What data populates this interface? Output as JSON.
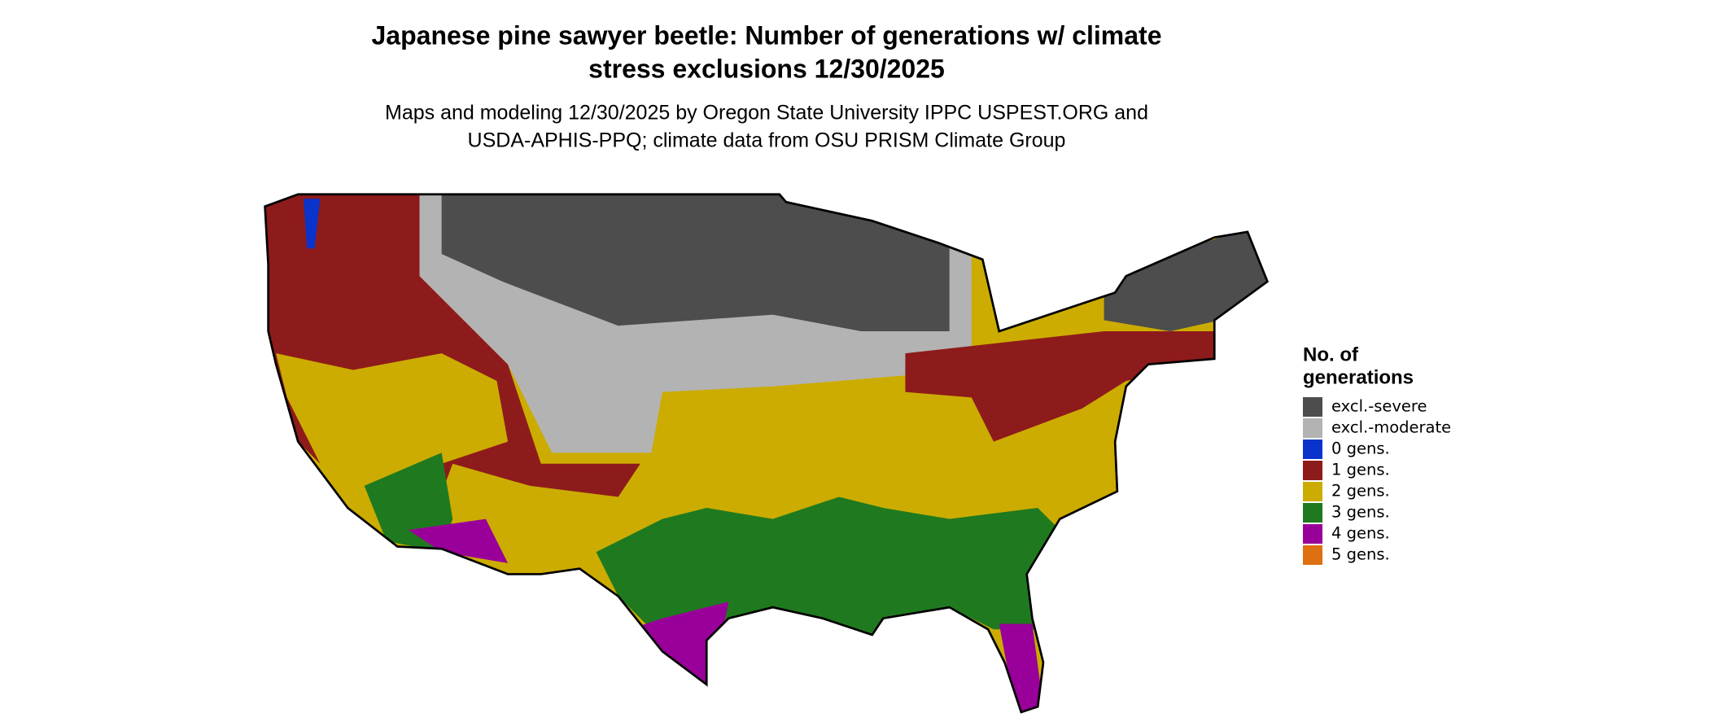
{
  "header": {
    "title_lines": [
      "Japanese pine sawyer beetle: Number of generations w/ climate",
      "stress exclusions 12/30/2025"
    ],
    "subtitle_lines": [
      "Maps and modeling 12/30/2025 by Oregon State University IPPC USPEST.ORG and",
      "USDA-APHIS-PPQ; climate data from OSU PRISM Climate Group"
    ]
  },
  "legend": {
    "title_lines": [
      "No. of",
      "generations"
    ],
    "items": [
      {
        "label": "excl.-severe",
        "color": "#4d4d4d"
      },
      {
        "label": "excl.-moderate",
        "color": "#b3b3b3"
      },
      {
        "label": "0 gens.",
        "color": "#0a33cc"
      },
      {
        "label": "1 gens.",
        "color": "#8e1b1b"
      },
      {
        "label": "2 gens.",
        "color": "#ccac00"
      },
      {
        "label": "3 gens.",
        "color": "#1f7a1f"
      },
      {
        "label": "4 gens.",
        "color": "#990099"
      },
      {
        "label": "5 gens.",
        "color": "#dd7011"
      }
    ]
  }
}
